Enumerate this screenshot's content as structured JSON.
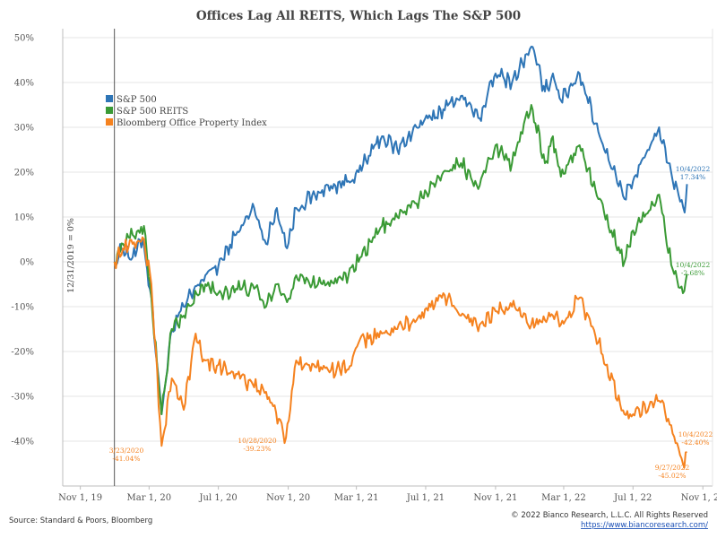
{
  "chart_data": {
    "type": "line",
    "title": "Offices Lag All REITS, Which Lags The S&P 500",
    "xlabel": "",
    "ylabel": "",
    "x_ticks": [
      "Nov 1, 19",
      "Mar 1, 20",
      "Jul 1, 20",
      "Nov 1, 20",
      "Mar 1, 21",
      "Jul 1, 21",
      "Nov 1, 21",
      "Mar 1, 22",
      "Jul 1, 22",
      "Nov 1, 22"
    ],
    "y_ticks": [
      "50%",
      "40%",
      "30%",
      "20%",
      "10%",
      "0%",
      "-10%",
      "-20%",
      "-30%",
      "-40%"
    ],
    "ylim": [
      -50,
      52
    ],
    "grid": "horizontal",
    "reference_line_label": "12/31/2019 = 0%",
    "legend_position": "upper-left",
    "series": [
      {
        "name": "S&P 500",
        "color": "#2e75b6",
        "x": [
          "2019-12-31",
          "2020-01-15",
          "2020-02-01",
          "2020-02-19",
          "2020-03-05",
          "2020-03-23",
          "2020-04-10",
          "2020-05-01",
          "2020-06-08",
          "2020-07-01",
          "2020-08-01",
          "2020-09-02",
          "2020-09-23",
          "2020-10-12",
          "2020-10-30",
          "2020-11-15",
          "2020-12-31",
          "2021-02-15",
          "2021-03-05",
          "2021-04-15",
          "2021-05-12",
          "2021-06-15",
          "2021-08-01",
          "2021-09-01",
          "2021-10-04",
          "2021-11-01",
          "2021-11-30",
          "2022-01-03",
          "2022-01-27",
          "2022-02-10",
          "2022-02-24",
          "2022-03-29",
          "2022-05-01",
          "2022-06-16",
          "2022-07-01",
          "2022-08-16",
          "2022-09-01",
          "2022-09-30",
          "2022-10-04"
        ],
        "values": [
          0,
          3,
          1,
          5,
          -8,
          -34,
          -15,
          -10,
          -3,
          -1,
          6,
          12,
          4,
          12,
          3,
          12,
          16,
          18,
          20,
          28,
          25,
          30,
          34,
          37,
          32,
          42,
          40,
          48,
          38,
          42,
          36,
          42,
          29,
          14,
          18,
          30,
          22,
          11,
          17.34
        ]
      },
      {
        "name": "S&P 500 REITS",
        "color": "#3a9a35",
        "x": [
          "2019-12-31",
          "2020-01-15",
          "2020-02-01",
          "2020-02-21",
          "2020-03-05",
          "2020-03-23",
          "2020-04-10",
          "2020-05-01",
          "2020-06-08",
          "2020-07-01",
          "2020-08-01",
          "2020-09-02",
          "2020-09-23",
          "2020-10-12",
          "2020-10-30",
          "2020-11-15",
          "2020-12-31",
          "2021-02-15",
          "2021-03-05",
          "2021-04-15",
          "2021-05-12",
          "2021-06-15",
          "2021-08-01",
          "2021-09-01",
          "2021-10-04",
          "2021-11-01",
          "2021-11-30",
          "2022-01-03",
          "2022-01-27",
          "2022-02-10",
          "2022-02-24",
          "2022-03-29",
          "2022-05-01",
          "2022-06-16",
          "2022-07-01",
          "2022-08-16",
          "2022-09-01",
          "2022-09-27",
          "2022-10-04"
        ],
        "values": [
          0,
          4,
          6,
          8,
          -8,
          -34,
          -15,
          -12,
          -5,
          -7,
          -6,
          -6,
          -10,
          -5,
          -9,
          -3,
          -5,
          -3,
          0,
          8,
          10,
          13,
          20,
          22,
          17,
          26,
          22,
          35,
          22,
          28,
          19,
          26,
          14,
          0,
          7,
          15,
          2,
          -7,
          -2.68
        ]
      },
      {
        "name": "Bloomberg Office Property Index",
        "color": "#f5821f",
        "x": [
          "2019-12-31",
          "2020-01-15",
          "2020-02-01",
          "2020-02-21",
          "2020-03-05",
          "2020-03-23",
          "2020-04-10",
          "2020-05-01",
          "2020-05-22",
          "2020-06-08",
          "2020-07-01",
          "2020-08-01",
          "2020-09-02",
          "2020-09-23",
          "2020-10-28",
          "2020-11-15",
          "2020-12-31",
          "2021-02-15",
          "2021-03-05",
          "2021-04-15",
          "2021-05-12",
          "2021-06-15",
          "2021-08-01",
          "2021-09-01",
          "2021-10-04",
          "2021-11-01",
          "2021-11-30",
          "2022-01-03",
          "2022-01-27",
          "2022-02-10",
          "2022-02-24",
          "2022-03-29",
          "2022-05-01",
          "2022-06-16",
          "2022-07-01",
          "2022-08-16",
          "2022-09-01",
          "2022-09-27",
          "2022-10-04"
        ],
        "values": [
          0,
          3,
          4,
          5,
          -5,
          -41.04,
          -26,
          -33,
          -16,
          -22,
          -23,
          -25,
          -28,
          -29,
          -39.23,
          -22,
          -24,
          -24,
          -18,
          -16,
          -15,
          -13,
          -7,
          -12,
          -14,
          -11,
          -10,
          -14,
          -13,
          -12,
          -14,
          -8,
          -18,
          -34,
          -34,
          -31,
          -35,
          -45.02,
          -42.4
        ]
      }
    ],
    "annotations": [
      {
        "date": "3/23/2020",
        "value": "-41.04%",
        "series": "Bloomberg Office Property Index"
      },
      {
        "date": "10/28/2020",
        "value": "-39.23%",
        "series": "Bloomberg Office Property Index"
      },
      {
        "date": "9/27/2022",
        "value": "-45.02%",
        "series": "Bloomberg Office Property Index"
      },
      {
        "date": "10/4/2022",
        "value": "-42.40%",
        "series": "Bloomberg Office Property Index"
      },
      {
        "date": "10/4/2022",
        "value": "17.34%",
        "series": "S&P 500"
      },
      {
        "date": "10/4/2022",
        "value": "-2.68%",
        "series": "S&P 500 REITS"
      }
    ]
  },
  "footer": {
    "source": "Source: Standard & Poors, Bloomberg",
    "copyright": "© 2022 Bianco Research, L.L.C. All Rights Reserved",
    "url": "https://www.biancoresearch.com/"
  }
}
